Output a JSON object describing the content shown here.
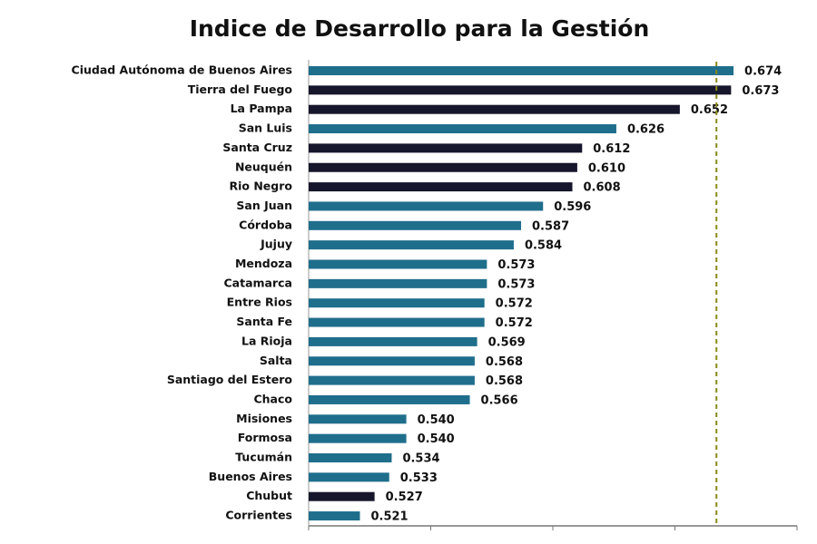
{
  "chart_data": {
    "type": "hbar",
    "title": "Indice de Desarrollo para la Gestión",
    "categories": [
      "Ciudad Autónoma de Buenos Aires",
      "Tierra del Fuego",
      "La Pampa",
      "San Luis",
      "Santa Cruz",
      "Neuquén",
      "Rio Negro",
      "San Juan",
      "Córdoba",
      "Jujuy",
      "Mendoza",
      "Catamarca",
      "Entre Rios",
      "Santa Fe",
      "La Rioja",
      "Salta",
      "Santiago del Estero",
      "Chaco",
      "Misiones",
      "Formosa",
      "Tucumán",
      "Buenos Aires",
      "Chubut",
      "Corrientes"
    ],
    "values": [
      0.674,
      0.673,
      0.652,
      0.626,
      0.612,
      0.61,
      0.608,
      0.596,
      0.587,
      0.584,
      0.573,
      0.573,
      0.572,
      0.572,
      0.569,
      0.568,
      0.568,
      0.566,
      0.54,
      0.54,
      0.534,
      0.533,
      0.527,
      0.521
    ],
    "value_labels": [
      "0.674",
      "0.673",
      "0.652",
      "0.626",
      "0.612",
      "0.610",
      "0.608",
      "0.596",
      "0.587",
      "0.584",
      "0.573",
      "0.573",
      "0.572",
      "0.572",
      "0.569",
      "0.568",
      "0.568",
      "0.566",
      "0.540",
      "0.540",
      "0.534",
      "0.533",
      "0.527",
      "0.521"
    ],
    "colors": [
      "#1f6e8c",
      "#16162c",
      "#16162c",
      "#1f6e8c",
      "#16162c",
      "#16162c",
      "#16162c",
      "#1f6e8c",
      "#1f6e8c",
      "#1f6e8c",
      "#1f6e8c",
      "#1f6e8c",
      "#1f6e8c",
      "#1f6e8c",
      "#1f6e8c",
      "#1f6e8c",
      "#1f6e8c",
      "#1f6e8c",
      "#1f6e8c",
      "#1f6e8c",
      "#1f6e8c",
      "#1f6e8c",
      "#16162c",
      "#1f6e8c"
    ],
    "xlim": [
      0.5,
      0.7
    ],
    "xticks": [
      0.5,
      0.55,
      0.6,
      0.65,
      0.7
    ],
    "reference_line": 0.667,
    "reference_color": "#8a8a1a"
  }
}
